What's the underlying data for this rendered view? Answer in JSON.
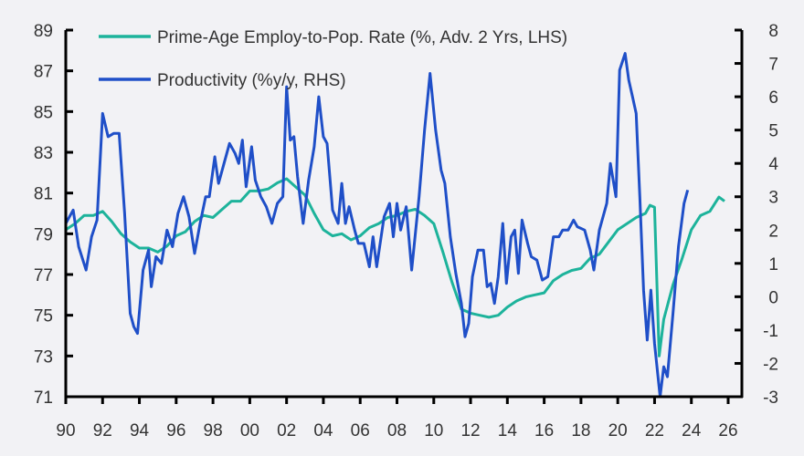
{
  "chart_data": {
    "type": "line",
    "title": "",
    "xlabel": "",
    "ylabel_left": "",
    "ylabel_right": "",
    "x_range": [
      1990,
      2026
    ],
    "x_tick_labels": [
      "90",
      "92",
      "94",
      "96",
      "98",
      "00",
      "02",
      "04",
      "06",
      "08",
      "10",
      "12",
      "14",
      "16",
      "18",
      "20",
      "22",
      "24",
      "26"
    ],
    "y_left": {
      "range": [
        71,
        89
      ],
      "ticks": [
        71,
        73,
        75,
        77,
        79,
        81,
        83,
        85,
        87,
        89
      ]
    },
    "y_right": {
      "range": [
        -3,
        8
      ],
      "ticks": [
        -3,
        -2,
        -1,
        0,
        1,
        2,
        3,
        4,
        5,
        6,
        7,
        8
      ]
    },
    "grid": false,
    "legend_position": "top-left",
    "series": [
      {
        "name": "Prime-Age Employ-to-Pop. Rate (%, Adv. 2 Yrs, LHS)",
        "axis": "left",
        "color": "#1db39b",
        "points": [
          [
            1990,
            79.2
          ],
          [
            1990.5,
            79.5
          ],
          [
            1991,
            79.9
          ],
          [
            1991.5,
            79.9
          ],
          [
            1992,
            80.1
          ],
          [
            1992.5,
            79.6
          ],
          [
            1993,
            79.0
          ],
          [
            1993.5,
            78.6
          ],
          [
            1994,
            78.3
          ],
          [
            1994.5,
            78.3
          ],
          [
            1995,
            78.1
          ],
          [
            1995.5,
            78.4
          ],
          [
            1996,
            78.9
          ],
          [
            1996.5,
            79.1
          ],
          [
            1997,
            79.6
          ],
          [
            1997.5,
            79.9
          ],
          [
            1998,
            79.8
          ],
          [
            1998.5,
            80.2
          ],
          [
            1999,
            80.6
          ],
          [
            1999.5,
            80.6
          ],
          [
            2000,
            81.1
          ],
          [
            2000.5,
            81.1
          ],
          [
            2001,
            81.2
          ],
          [
            2001.5,
            81.5
          ],
          [
            2002,
            81.7
          ],
          [
            2002.5,
            81.3
          ],
          [
            2003,
            80.9
          ],
          [
            2003.5,
            80.0
          ],
          [
            2004,
            79.2
          ],
          [
            2004.5,
            78.9
          ],
          [
            2005,
            79.0
          ],
          [
            2005.5,
            78.7
          ],
          [
            2006,
            78.9
          ],
          [
            2006.5,
            79.3
          ],
          [
            2007,
            79.5
          ],
          [
            2007.5,
            79.8
          ],
          [
            2008,
            79.9
          ],
          [
            2008.5,
            80.1
          ],
          [
            2009,
            80.2
          ],
          [
            2009.5,
            79.9
          ],
          [
            2010,
            79.5
          ],
          [
            2010.5,
            78.1
          ],
          [
            2011,
            76.6
          ],
          [
            2011.5,
            75.3
          ],
          [
            2012,
            75.1
          ],
          [
            2012.5,
            75.0
          ],
          [
            2013,
            74.9
          ],
          [
            2013.5,
            75.0
          ],
          [
            2014,
            75.4
          ],
          [
            2014.5,
            75.7
          ],
          [
            2015,
            75.9
          ],
          [
            2015.5,
            76.0
          ],
          [
            2016,
            76.1
          ],
          [
            2016.5,
            76.7
          ],
          [
            2017,
            77.0
          ],
          [
            2017.5,
            77.2
          ],
          [
            2018,
            77.3
          ],
          [
            2018.5,
            77.8
          ],
          [
            2019,
            78.0
          ],
          [
            2019.5,
            78.6
          ],
          [
            2020,
            79.2
          ],
          [
            2020.5,
            79.5
          ],
          [
            2021,
            79.8
          ],
          [
            2021.5,
            80.0
          ],
          [
            2021.75,
            80.4
          ],
          [
            2022,
            80.3
          ],
          [
            2022.25,
            73.0
          ],
          [
            2022.5,
            74.8
          ],
          [
            2023,
            76.5
          ],
          [
            2023.5,
            77.8
          ],
          [
            2024,
            79.2
          ],
          [
            2024.5,
            79.9
          ],
          [
            2025,
            80.1
          ],
          [
            2025.5,
            80.8
          ],
          [
            2025.8,
            80.6
          ]
        ]
      },
      {
        "name": "Productivity (%y/y, RHS)",
        "axis": "right",
        "color": "#1f4fc8",
        "points": [
          [
            1990.0,
            2.2
          ],
          [
            1990.4,
            2.6
          ],
          [
            1990.7,
            1.5
          ],
          [
            1991.1,
            0.8
          ],
          [
            1991.4,
            1.8
          ],
          [
            1991.7,
            2.3
          ],
          [
            1992.0,
            5.5
          ],
          [
            1992.3,
            4.8
          ],
          [
            1992.6,
            4.9
          ],
          [
            1992.9,
            4.9
          ],
          [
            1993.2,
            2.5
          ],
          [
            1993.5,
            -0.5
          ],
          [
            1993.7,
            -0.9
          ],
          [
            1993.9,
            -1.1
          ],
          [
            1994.2,
            0.8
          ],
          [
            1994.5,
            1.4
          ],
          [
            1994.65,
            0.3
          ],
          [
            1994.9,
            1.2
          ],
          [
            1995.2,
            1.0
          ],
          [
            1995.5,
            2.0
          ],
          [
            1995.8,
            1.5
          ],
          [
            1996.1,
            2.5
          ],
          [
            1996.4,
            3.0
          ],
          [
            1996.7,
            2.4
          ],
          [
            1997.0,
            1.3
          ],
          [
            1997.3,
            2.2
          ],
          [
            1997.6,
            3.0
          ],
          [
            1997.8,
            3.0
          ],
          [
            1998.1,
            4.2
          ],
          [
            1998.3,
            3.4
          ],
          [
            1998.6,
            4.0
          ],
          [
            1998.9,
            4.6
          ],
          [
            1999.2,
            4.3
          ],
          [
            1999.4,
            4.0
          ],
          [
            1999.6,
            4.7
          ],
          [
            1999.8,
            3.3
          ],
          [
            2000.1,
            4.5
          ],
          [
            2000.3,
            3.5
          ],
          [
            2000.6,
            3.0
          ],
          [
            2000.9,
            2.7
          ],
          [
            2001.2,
            2.2
          ],
          [
            2001.5,
            2.8
          ],
          [
            2001.8,
            3.0
          ],
          [
            2002.0,
            6.3
          ],
          [
            2002.2,
            4.7
          ],
          [
            2002.4,
            4.8
          ],
          [
            2002.6,
            3.6
          ],
          [
            2002.9,
            2.2
          ],
          [
            2003.2,
            3.5
          ],
          [
            2003.5,
            4.5
          ],
          [
            2003.75,
            6.0
          ],
          [
            2004.0,
            4.8
          ],
          [
            2004.2,
            4.6
          ],
          [
            2004.5,
            2.6
          ],
          [
            2004.8,
            2.2
          ],
          [
            2005.0,
            3.4
          ],
          [
            2005.2,
            2.2
          ],
          [
            2005.4,
            2.7
          ],
          [
            2005.7,
            2.0
          ],
          [
            2005.9,
            1.6
          ],
          [
            2006.2,
            1.6
          ],
          [
            2006.5,
            0.9
          ],
          [
            2006.7,
            1.8
          ],
          [
            2006.9,
            0.9
          ],
          [
            2007.3,
            2.4
          ],
          [
            2007.6,
            2.8
          ],
          [
            2007.8,
            1.8
          ],
          [
            2008.0,
            2.8
          ],
          [
            2008.2,
            2.0
          ],
          [
            2008.5,
            2.7
          ],
          [
            2008.8,
            0.8
          ],
          [
            2009.2,
            3.0
          ],
          [
            2009.5,
            5.0
          ],
          [
            2009.8,
            6.7
          ],
          [
            2010.1,
            5.0
          ],
          [
            2010.4,
            3.8
          ],
          [
            2010.6,
            3.4
          ],
          [
            2010.9,
            1.8
          ],
          [
            2011.2,
            0.7
          ],
          [
            2011.5,
            -0.2
          ],
          [
            2011.7,
            -1.2
          ],
          [
            2011.9,
            -0.8
          ],
          [
            2012.1,
            0.6
          ],
          [
            2012.4,
            1.4
          ],
          [
            2012.7,
            1.4
          ],
          [
            2012.9,
            0.3
          ],
          [
            2013.1,
            0.4
          ],
          [
            2013.3,
            -0.2
          ],
          [
            2013.5,
            0.6
          ],
          [
            2013.75,
            2.2
          ],
          [
            2013.95,
            0.4
          ],
          [
            2014.2,
            1.8
          ],
          [
            2014.4,
            2.0
          ],
          [
            2014.6,
            0.7
          ],
          [
            2014.8,
            2.3
          ],
          [
            2015.1,
            1.6
          ],
          [
            2015.3,
            1.2
          ],
          [
            2015.6,
            1.1
          ],
          [
            2015.9,
            0.5
          ],
          [
            2016.2,
            0.6
          ],
          [
            2016.5,
            1.8
          ],
          [
            2016.8,
            1.8
          ],
          [
            2017.0,
            2.0
          ],
          [
            2017.3,
            2.0
          ],
          [
            2017.6,
            2.3
          ],
          [
            2017.8,
            2.1
          ],
          [
            2018.2,
            2.0
          ],
          [
            2018.5,
            1.4
          ],
          [
            2018.7,
            0.8
          ],
          [
            2019.0,
            2.0
          ],
          [
            2019.4,
            2.8
          ],
          [
            2019.6,
            4.0
          ],
          [
            2019.9,
            3.0
          ],
          [
            2020.1,
            6.8
          ],
          [
            2020.4,
            7.3
          ],
          [
            2020.6,
            6.5
          ],
          [
            2020.8,
            6.0
          ],
          [
            2021.0,
            5.5
          ],
          [
            2021.2,
            3.0
          ],
          [
            2021.4,
            0.2
          ],
          [
            2021.6,
            -1.3
          ],
          [
            2021.8,
            0.2
          ],
          [
            2022.0,
            -1.4
          ],
          [
            2022.3,
            -3.0
          ],
          [
            2022.5,
            -2.1
          ],
          [
            2022.7,
            -2.4
          ],
          [
            2023.0,
            -0.5
          ],
          [
            2023.3,
            1.5
          ],
          [
            2023.6,
            2.8
          ],
          [
            2023.8,
            3.2
          ]
        ]
      }
    ]
  }
}
